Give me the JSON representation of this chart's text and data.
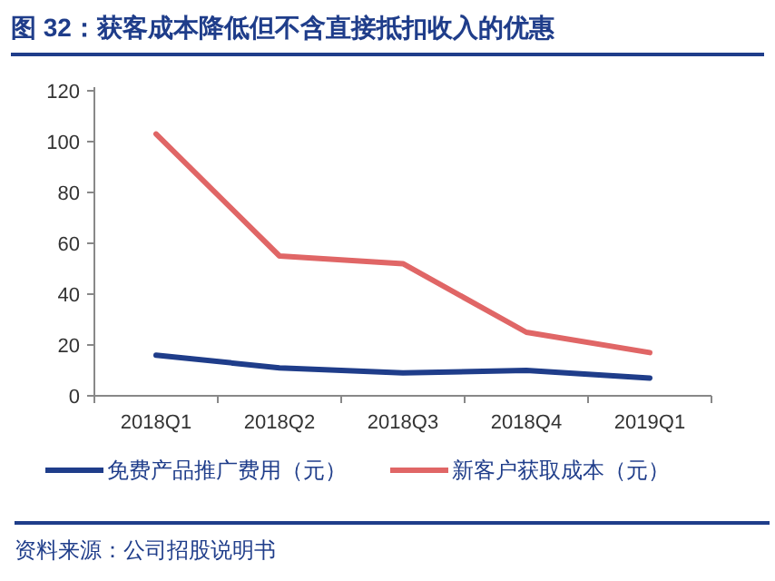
{
  "chart_data": {
    "type": "line",
    "title": "图 32：获客成本降低但不含直接抵扣收入的优惠",
    "categories": [
      "2018Q1",
      "2018Q2",
      "2018Q3",
      "2018Q4",
      "2019Q1"
    ],
    "series": [
      {
        "name": "免费产品推广费用（元）",
        "color": "#1f3d8a",
        "values": [
          16,
          11,
          9,
          10,
          7
        ]
      },
      {
        "name": "新客户获取成本（元）",
        "color": "#e06666",
        "values": [
          103,
          55,
          52,
          25,
          17
        ]
      }
    ],
    "ylim": [
      0,
      120
    ],
    "yticks": [
      0,
      20,
      40,
      60,
      80,
      100,
      120
    ],
    "grid": false,
    "legend": "bottom",
    "annotations": [
      "资料来源：公司招股说明书"
    ]
  }
}
